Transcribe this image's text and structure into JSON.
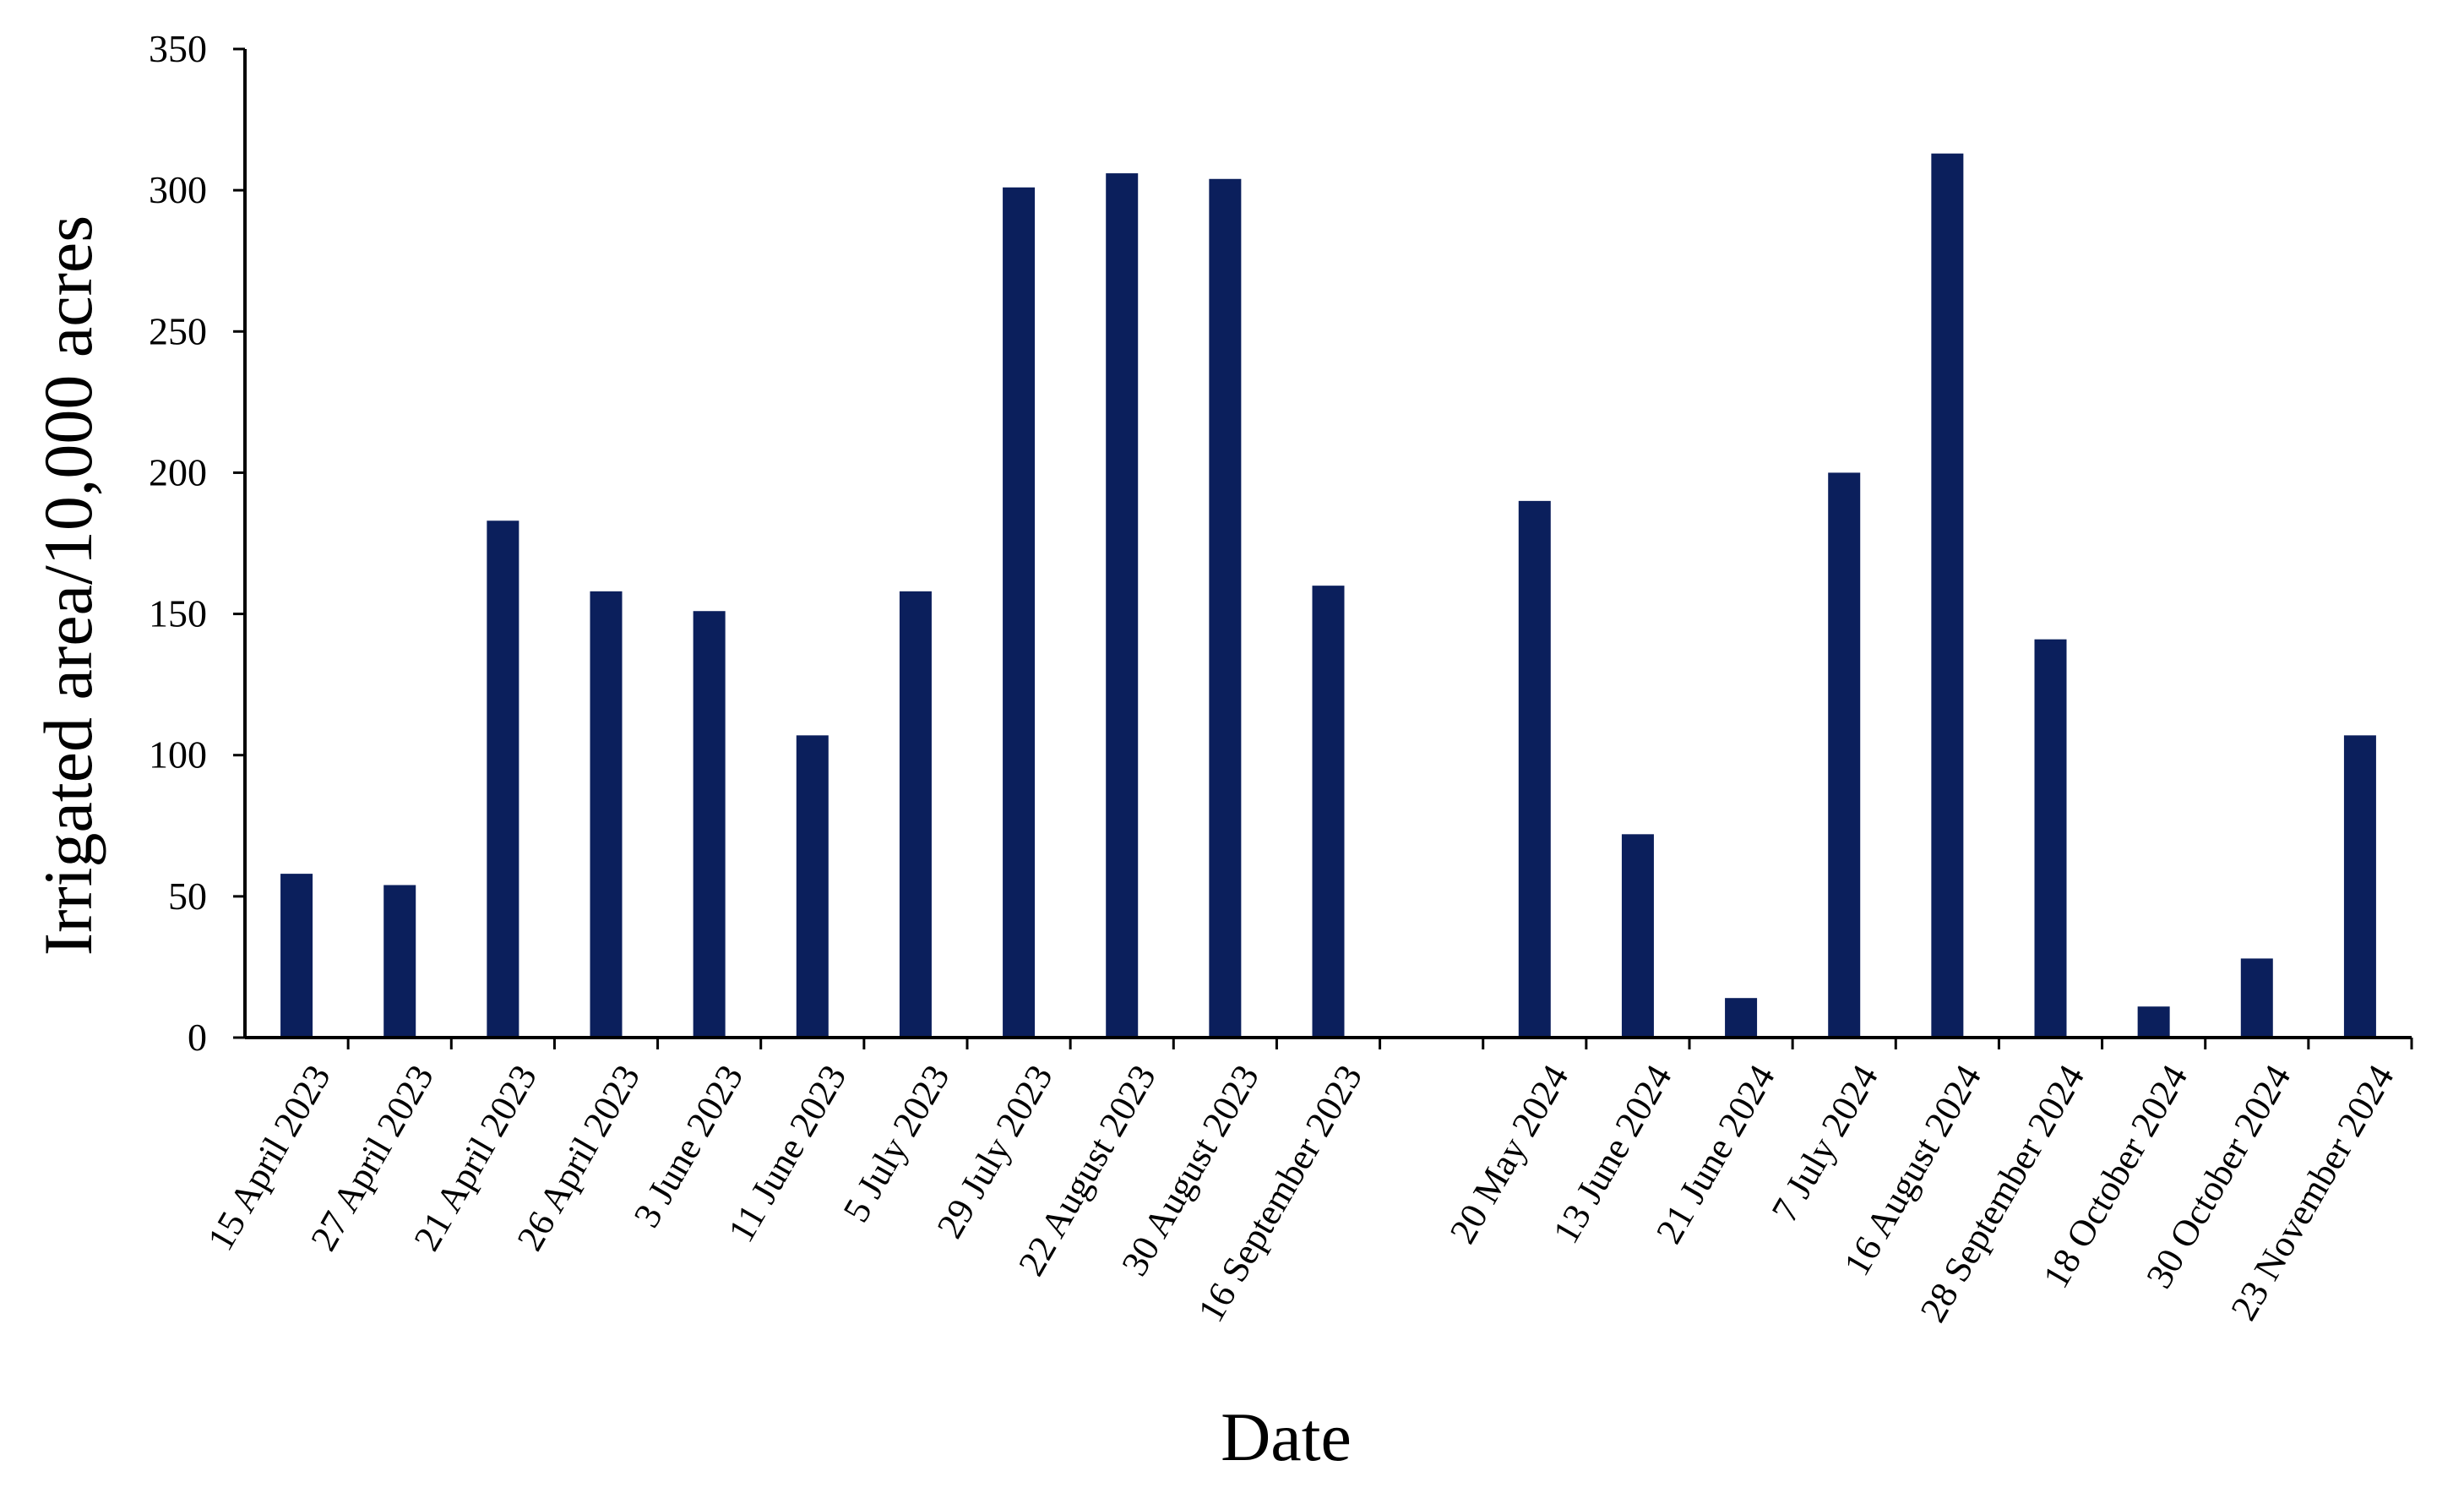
{
  "chart_data": {
    "type": "bar",
    "title": "",
    "xlabel": "Date",
    "ylabel": "Irrigated area/10,000 acres",
    "ylim": [
      0,
      350
    ],
    "yticks": [
      0,
      50,
      100,
      150,
      200,
      250,
      300,
      350
    ],
    "grid": false,
    "legend": "none",
    "bar_color": "#0b1f5c",
    "categories": [
      "15 April 2023",
      "27 April 2023",
      "21 April 2023",
      "26 April 2023",
      "3 June 2023",
      "11 June 2023",
      "5 July 2023",
      "29 July 2023",
      "22 August 2023",
      "30 August 2023",
      "16 September 2023",
      "",
      "20 May 2024",
      "13 June 2024",
      "21 June 2024",
      "7 July 2024",
      "16 August 2024",
      "28 September 2024",
      "18 October 2024",
      "30 October 2024",
      "23 November 2024"
    ],
    "values": [
      58,
      54,
      183,
      158,
      151,
      107,
      158,
      301,
      306,
      304,
      160,
      null,
      190,
      72,
      14,
      200,
      313,
      141,
      11,
      28,
      107
    ]
  }
}
